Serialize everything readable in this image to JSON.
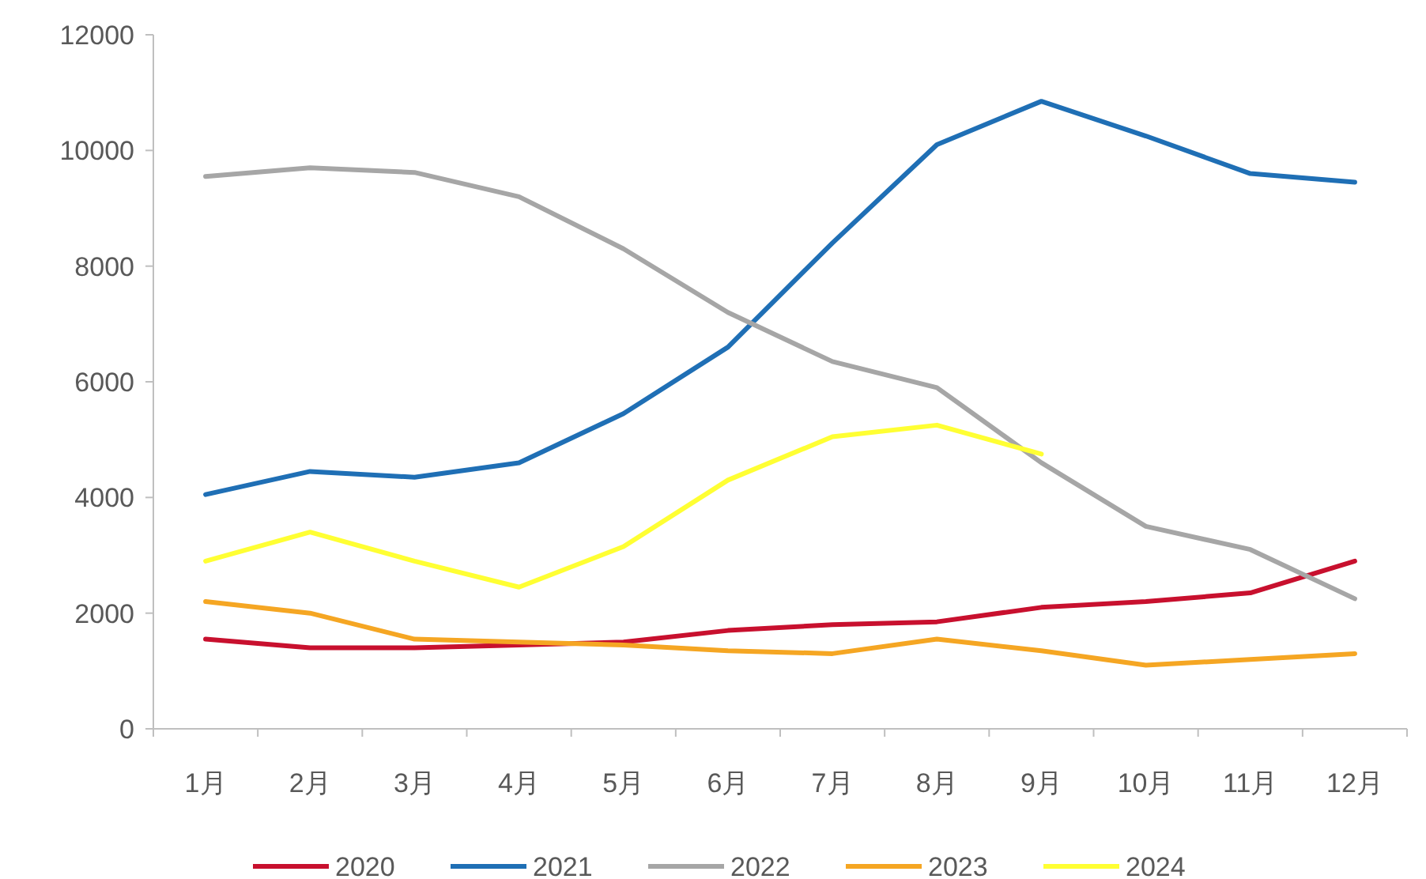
{
  "chart_data": {
    "type": "line",
    "categories": [
      "1月",
      "2月",
      "3月",
      "4月",
      "5月",
      "6月",
      "7月",
      "8月",
      "9月",
      "10月",
      "11月",
      "12月"
    ],
    "ylim": [
      0,
      12000
    ],
    "yticks": [
      0,
      2000,
      4000,
      6000,
      8000,
      10000,
      12000
    ],
    "grid": false,
    "legend": "bottom",
    "marker": "none",
    "line_style": "solid",
    "series": [
      {
        "name": "2020",
        "color": "#c8102e",
        "values": [
          1550,
          1400,
          1400,
          1450,
          1500,
          1700,
          1800,
          1850,
          2100,
          2200,
          2350,
          2900
        ]
      },
      {
        "name": "2021",
        "color": "#1f6fb5",
        "values": [
          4050,
          4450,
          4350,
          4600,
          5450,
          6600,
          8400,
          10100,
          10850,
          10250,
          9600,
          9450
        ]
      },
      {
        "name": "2022",
        "color": "#a6a6a6",
        "values": [
          9550,
          9700,
          9620,
          9200,
          8300,
          7200,
          6350,
          5900,
          4600,
          3500,
          3100,
          2250
        ]
      },
      {
        "name": "2023",
        "color": "#f5a623",
        "values": [
          2200,
          2000,
          1550,
          1500,
          1450,
          1350,
          1300,
          1550,
          1350,
          1100,
          1200,
          1300
        ]
      },
      {
        "name": "2024",
        "color": "#ffff33",
        "values": [
          2900,
          3400,
          2900,
          2450,
          3150,
          4300,
          5050,
          5250,
          4750,
          null,
          null,
          null
        ]
      }
    ]
  }
}
